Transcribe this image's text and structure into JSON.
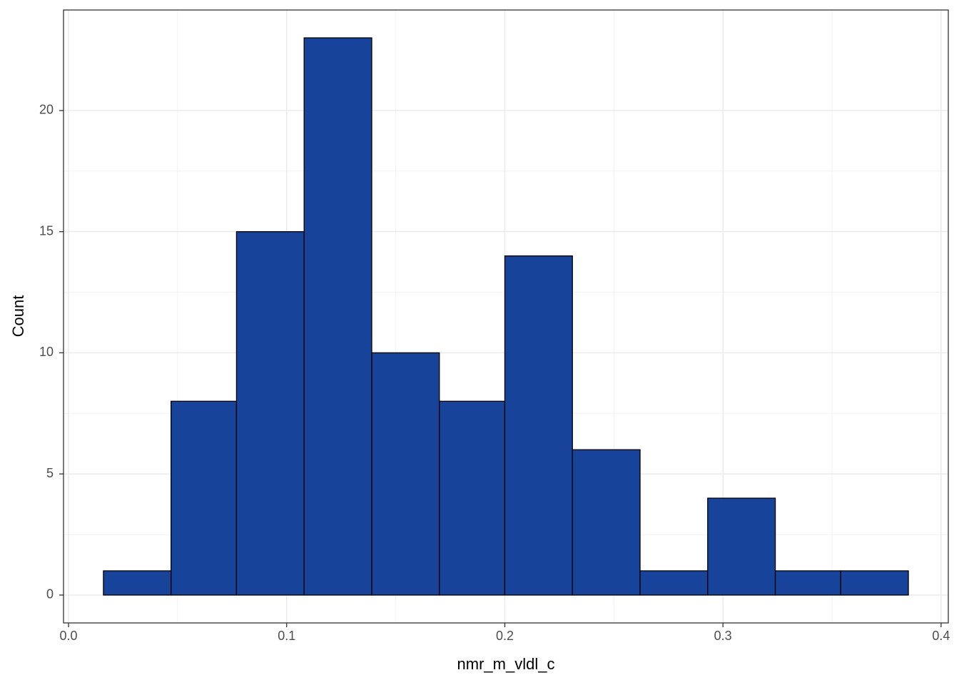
{
  "chart_data": {
    "type": "histogram",
    "x_label": "nmr_m_vldl_c",
    "y_label": "Count",
    "bins": [
      0.016,
      0.047,
      0.077,
      0.108,
      0.139,
      0.17,
      0.2,
      0.231,
      0.262,
      0.293,
      0.324,
      0.354,
      0.385
    ],
    "values": [
      1,
      8,
      15,
      23,
      10,
      8,
      14,
      6,
      1,
      4,
      1,
      1
    ],
    "color": "#17449a",
    "edge_color": "#000000",
    "xlim": [
      -0.0023,
      0.4033
    ],
    "xticks": [
      {
        "value": 0,
        "label": "0.0"
      },
      0.1,
      0.2,
      0.3,
      0.4
    ],
    "ylim": [
      -1.15,
      24.15
    ],
    "yticks": [
      0,
      5,
      10,
      15,
      20
    ],
    "grid": true
  }
}
